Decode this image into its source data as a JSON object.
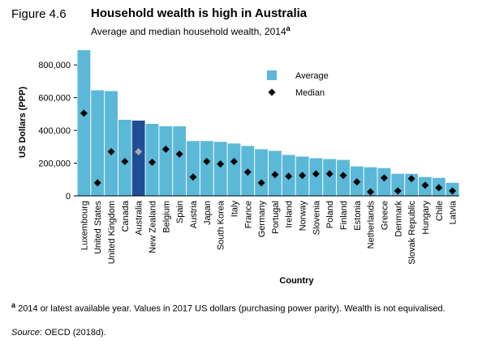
{
  "figure": {
    "label": "Figure 4.6",
    "title": "Household wealth is high in Australia",
    "subtitle": "Average and median household wealth, 2014",
    "subtitle_note": "a"
  },
  "footnote": {
    "marker": "a",
    "text": " 2014 or latest available year. Values in 2017 US dollars (purchasing power parity). Wealth is not equivalised."
  },
  "source": {
    "label": "Source",
    "text": ": OECD (2018d)."
  },
  "colors": {
    "average": "#5bb8d8",
    "highlight": "#1f4e96",
    "median": "#000000",
    "highlight_median": "#aaaaaa"
  },
  "chart_data": {
    "type": "bar",
    "xlabel": "Country",
    "ylabel": "US Dollars (PPP)",
    "ylim": [
      0,
      900000
    ],
    "yticks": [
      0,
      200000,
      400000,
      600000,
      800000
    ],
    "ytick_labels": [
      "0",
      "200,000",
      "400,000",
      "600,000",
      "800,000"
    ],
    "legend": {
      "position": "top-right",
      "entries": [
        "Average",
        "Median"
      ]
    },
    "highlight_category": "Australia",
    "categories": [
      "Luxembourg",
      "United States",
      "United Kingdom",
      "Canada",
      "Australia",
      "New Zealand",
      "Belgium",
      "Spain",
      "Austria",
      "Japan",
      "South Korea",
      "Italy",
      "France",
      "Germany",
      "Portugal",
      "Ireland",
      "Norway",
      "Slovenia",
      "Poland",
      "Finland",
      "Estonia",
      "Netherlands",
      "Greece",
      "Denmark",
      "Slovak Republic",
      "Hungary",
      "Chile",
      "Latvia"
    ],
    "series": [
      {
        "name": "Average",
        "kind": "bar",
        "values": [
          890000,
          645000,
          640000,
          465000,
          460000,
          440000,
          425000,
          425000,
          335000,
          335000,
          330000,
          320000,
          305000,
          285000,
          275000,
          250000,
          240000,
          230000,
          225000,
          220000,
          180000,
          175000,
          170000,
          135000,
          135000,
          115000,
          110000,
          80000
        ]
      },
      {
        "name": "Median",
        "kind": "marker",
        "values": [
          505000,
          80000,
          270000,
          210000,
          270000,
          205000,
          285000,
          255000,
          115000,
          210000,
          195000,
          210000,
          145000,
          80000,
          130000,
          120000,
          125000,
          135000,
          135000,
          125000,
          85000,
          25000,
          110000,
          30000,
          105000,
          65000,
          50000,
          30000
        ]
      }
    ]
  }
}
